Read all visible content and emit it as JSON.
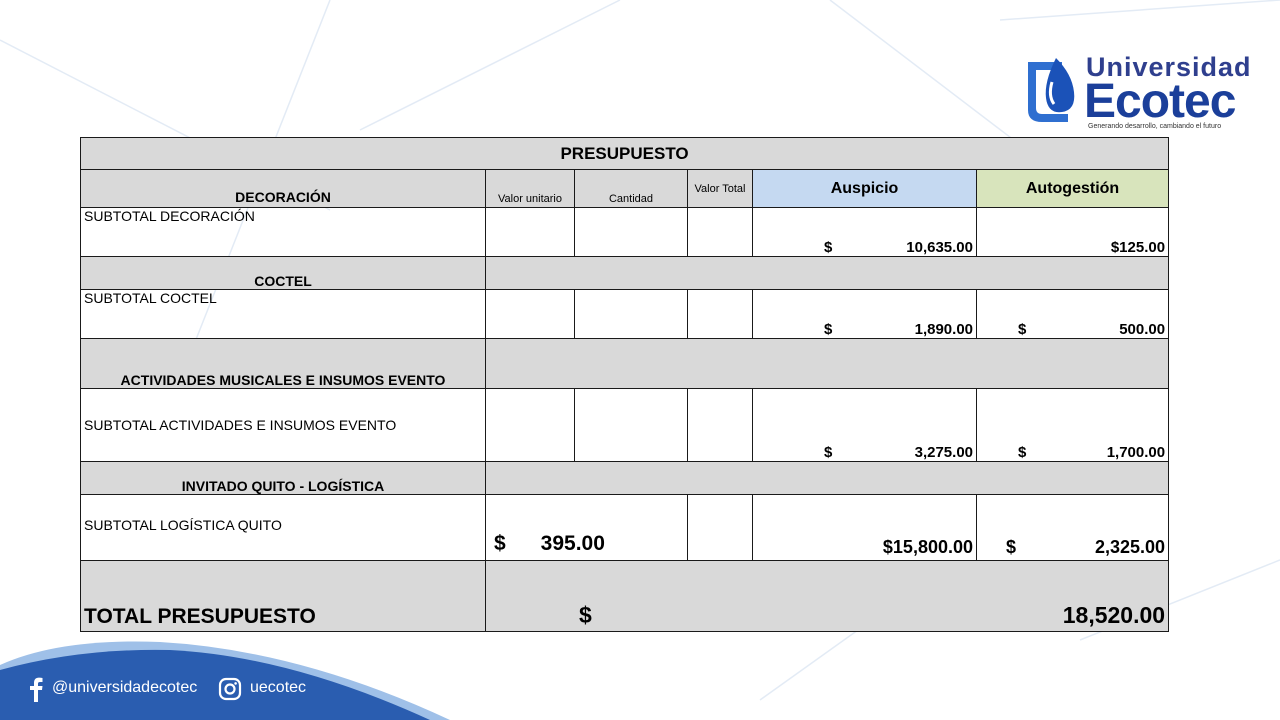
{
  "logo": {
    "line1": "Universidad",
    "line2": "Ecotec",
    "tagline": "Generando desarrollo, cambiando el futuro"
  },
  "table": {
    "title": "PRESUPUESTO",
    "headers": {
      "item": "DECORACIÓN",
      "unit_value": "Valor unitario",
      "quantity": "Cantidad",
      "total_value": "Valor Total",
      "sponsorship": "Auspicio",
      "self_managed": "Autogestión"
    },
    "rows": {
      "decoracion": {
        "label": "SUBTOTAL DECORACIÓN",
        "auspicio_sym": "$",
        "auspicio": "10,635.00",
        "autogestion": "$125.00"
      },
      "coctel_header": "COCTEL",
      "coctel": {
        "label": "SUBTOTAL COCTEL",
        "auspicio_sym": "$",
        "auspicio": "1,890.00",
        "autogestion_sym": "$",
        "autogestion": "500.00"
      },
      "musicales_header": "ACTIVIDADES MUSICALES E INSUMOS EVENTO",
      "musicales": {
        "label": "SUBTOTAL  ACTIVIDADES E INSUMOS EVENTO",
        "auspicio_sym": "$",
        "auspicio": "3,275.00",
        "autogestion_sym": "$",
        "autogestion": "1,700.00"
      },
      "quito_header": "INVITADO QUITO - LOGÍSTICA",
      "quito": {
        "label": "SUBTOTAL LOGÍSTICA QUITO",
        "unit_value": "$      395.00",
        "auspicio": "$15,800.00",
        "autogestion_sym": "$",
        "autogestion": "2,325.00"
      },
      "total": {
        "label": "TOTAL PRESUPUESTO",
        "sym": "$",
        "value": "18,520.00"
      }
    }
  },
  "footer": {
    "facebook": "@universidadecotec",
    "instagram": "uecotec"
  },
  "colors": {
    "header_gray": "#d9d9d9",
    "auspicio_blue": "#c5d9f1",
    "autogestion_green": "#d8e4bc",
    "brand_blue": "#1b3f9a",
    "footer_blue": "#2a5db0"
  },
  "icons": [
    "facebook-icon",
    "instagram-icon",
    "ecotec-logo-mark"
  ]
}
